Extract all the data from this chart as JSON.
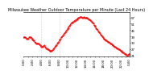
{
  "title": "Milwaukee Weather Outdoor Temperature per Minute (Last 24 Hours)",
  "line_color": "#ff0000",
  "line_style": "--",
  "line_width": 0.6,
  "marker": ".",
  "marker_size": 1.0,
  "bg_color": "#ffffff",
  "plot_bg_color": "#ffffff",
  "grid_color": "#aaaaaa",
  "ylim": [
    20,
    62
  ],
  "yticks": [
    21,
    27,
    33,
    39,
    45,
    51,
    57
  ],
  "title_fontsize": 3.5,
  "tick_fontsize": 2.8,
  "temp_values": [
    38,
    38.5,
    38,
    37.5,
    37,
    36.5,
    37,
    38,
    38.5,
    38,
    37.5,
    37,
    36,
    35.5,
    35,
    34,
    33,
    32.5,
    32,
    32.5,
    32,
    31.5,
    30.5,
    30,
    29.5,
    29,
    29.5,
    30,
    30.5,
    29,
    28,
    27.5,
    27,
    26.5,
    26,
    25.5,
    25,
    25,
    25.5,
    26,
    27,
    28,
    29,
    30,
    31,
    32,
    33,
    34,
    35,
    36,
    37,
    38,
    39,
    40,
    41,
    42,
    43,
    44,
    45,
    46,
    47,
    48,
    49,
    50,
    51,
    52,
    52.5,
    53,
    53.5,
    54,
    54.5,
    55,
    55.5,
    56,
    56.5,
    57,
    57.2,
    57.5,
    57.3,
    57,
    56.8,
    57.2,
    57,
    56.5,
    56.8,
    57,
    56.5,
    56,
    55.5,
    55,
    54.5,
    54,
    53,
    52,
    51,
    50,
    49,
    48,
    47,
    46,
    45,
    44,
    43,
    42,
    41,
    40,
    39,
    38,
    37,
    36.5,
    36,
    35.5,
    35,
    34.5,
    34,
    33.5,
    33,
    32.5,
    32,
    31.5,
    31,
    30.5,
    30,
    29.5,
    29,
    28.5,
    28,
    27.5,
    27,
    26.5,
    26,
    25.5,
    25,
    24.5,
    24,
    23.5,
    23,
    22.5,
    22,
    21.5,
    21,
    21.5,
    22,
    22.5
  ],
  "x_tick_labels": [
    "0:00",
    "",
    "2:00",
    "",
    "4:00",
    "",
    "6:00",
    "",
    "8:00",
    "",
    "10:00",
    "",
    "12:00",
    "",
    "14:00",
    "",
    "16:00",
    "",
    "18:00",
    "",
    "20:00",
    "",
    "22:00",
    "",
    "0:00"
  ],
  "x_tick_positions": [
    0,
    6,
    12,
    18,
    24,
    30,
    36,
    42,
    48,
    54,
    60,
    66,
    72,
    78,
    84,
    90,
    96,
    102,
    108,
    114,
    120,
    126,
    132,
    138,
    143
  ],
  "vline_positions": [
    24,
    48
  ],
  "right_axis": true
}
